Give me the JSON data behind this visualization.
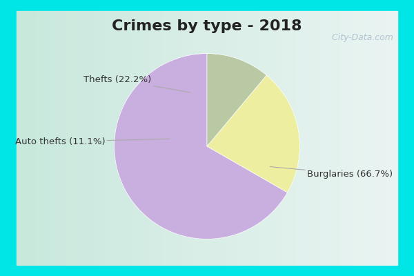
{
  "title": "Crimes by type - 2018",
  "slices": [
    {
      "label": "Burglaries (66.7%)",
      "value": 66.7,
      "color": "#C9AEE0"
    },
    {
      "label": "Thefts (22.2%)",
      "value": 22.2,
      "color": "#EEEEA0"
    },
    {
      "label": "Auto thefts (11.1%)",
      "value": 11.1,
      "color": "#B8C9A4"
    }
  ],
  "border_color": "#00E5E5",
  "bg_left_color": "#C8E8DC",
  "bg_right_color": "#E8F4F0",
  "title_fontsize": 16,
  "watermark": "  City-Data.com",
  "label_fontsize": 9.5,
  "startangle": 90,
  "border_width": 8
}
